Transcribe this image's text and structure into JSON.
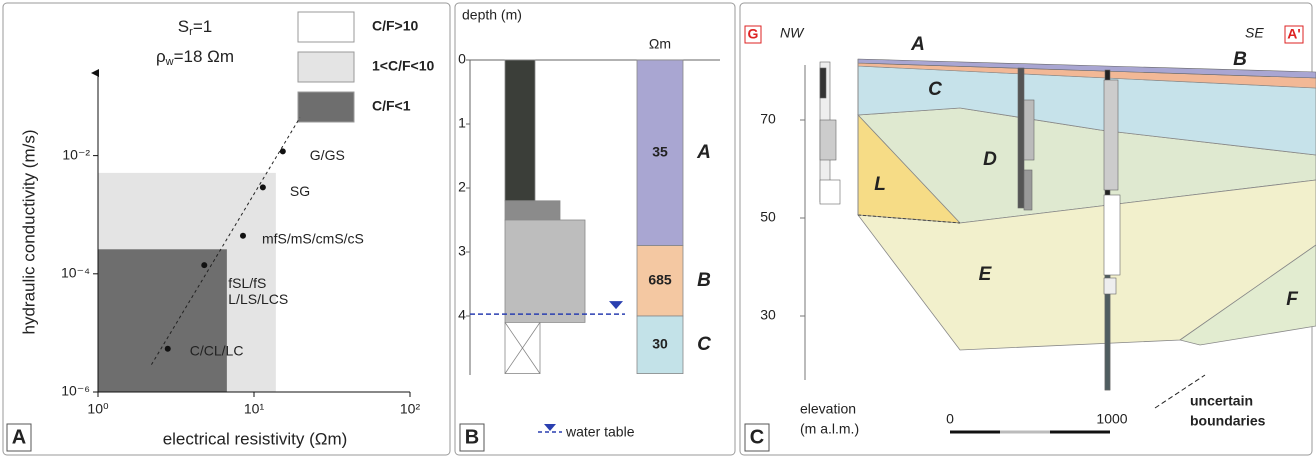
{
  "chart_data": {
    "type": "scatter",
    "saturation": {
      "symbol": "S",
      "subscript": "r",
      "text": "=1"
    },
    "water_resistivity": {
      "symbol": "ρ",
      "subscript": "w",
      "text": "=18 Ωm"
    },
    "x_label": "electrical resistivity (Ωm)",
    "y_label": "hydraulic conductivity (m/s)",
    "log_x": true,
    "log_y": true,
    "xlim": [
      1,
      100
    ],
    "ylim": [
      1e-06,
      0.25
    ],
    "xticks": [
      {
        "value": 1,
        "label": "10⁰"
      },
      {
        "value": 10,
        "label": "10¹"
      },
      {
        "value": 100,
        "label": "10²"
      }
    ],
    "yticks": [
      {
        "value": 1e-06,
        "label": "10⁻⁶"
      },
      {
        "value": 0.0001,
        "label": "10⁻⁴"
      },
      {
        "value": 0.01,
        "label": "10⁻²"
      }
    ],
    "x": [
      2.8,
      4.8,
      8.5,
      11.4,
      15.3
    ],
    "values": [
      5.4e-06,
      0.00014,
      0.00044,
      0.0029,
      0.0118
    ],
    "point_labels": [
      [
        "C/CL/LC"
      ],
      [
        "fSL/fS",
        "L/LS/LCS"
      ],
      [
        "mfS/mS/cmS/cS"
      ],
      [
        "SG"
      ],
      [
        "G/GS"
      ]
    ],
    "color": "#111111",
    "regions": [
      {
        "name": "C/F>10",
        "color": "#ffffff"
      },
      {
        "name": "1<C/F<10",
        "color": "#e4e4e4",
        "xlim": [
          1,
          13.8
        ],
        "ylim": [
          1e-06,
          0.0051
        ]
      },
      {
        "name": "C/F<1",
        "color": "#6e6e6e",
        "xlim": [
          1,
          6.7
        ],
        "ylim": [
          1e-06,
          0.00026
        ]
      }
    ],
    "trend_line": {
      "x": [
        2.2,
        19.7
      ],
      "values": [
        2.9e-06,
        0.044
      ]
    },
    "panel_label": "A"
  },
  "panel_b": {
    "header": "depth (m)",
    "unit": "Ωm",
    "depth_ticks": [
      0,
      1,
      2,
      3,
      4
    ],
    "lithology": [
      {
        "top": 0,
        "bottom": 2.2,
        "color": "#3b3e39"
      },
      {
        "top": 2.2,
        "bottom": 2.5,
        "color": "#8b8b8b"
      },
      {
        "top": 2.5,
        "bottom": 4.1,
        "color": "#bdbdbd"
      },
      {
        "top": 4.1,
        "bottom": 4.9,
        "color": "#ffffff"
      }
    ],
    "resistivity_layers": [
      {
        "top": 0,
        "bottom": 2.9,
        "value": 35,
        "name": "A",
        "color": "#a9a6d2"
      },
      {
        "top": 2.9,
        "bottom": 4.0,
        "value": 685,
        "name": "B",
        "color": "#f4c8a2"
      },
      {
        "top": 4.0,
        "bottom": 4.9,
        "value": 30,
        "name": "C",
        "color": "#c3e2e8"
      }
    ],
    "water_table_depth": 3.97,
    "legend": "water table",
    "panel_label": "B"
  },
  "panel_c": {
    "left_marker": "G",
    "left_direction": "NW",
    "right_direction": "SE",
    "right_marker": "A'",
    "elevation_ticks": [
      70,
      50,
      30
    ],
    "axis_label": [
      "elevation",
      "(m a.l.m.)"
    ],
    "layers": [
      "A",
      "B",
      "C",
      "D",
      "L",
      "E",
      "F"
    ],
    "scale_bar": [
      "0",
      "1000"
    ],
    "uncertain": [
      "uncertain",
      "boundaries"
    ],
    "panel_label": "C"
  }
}
